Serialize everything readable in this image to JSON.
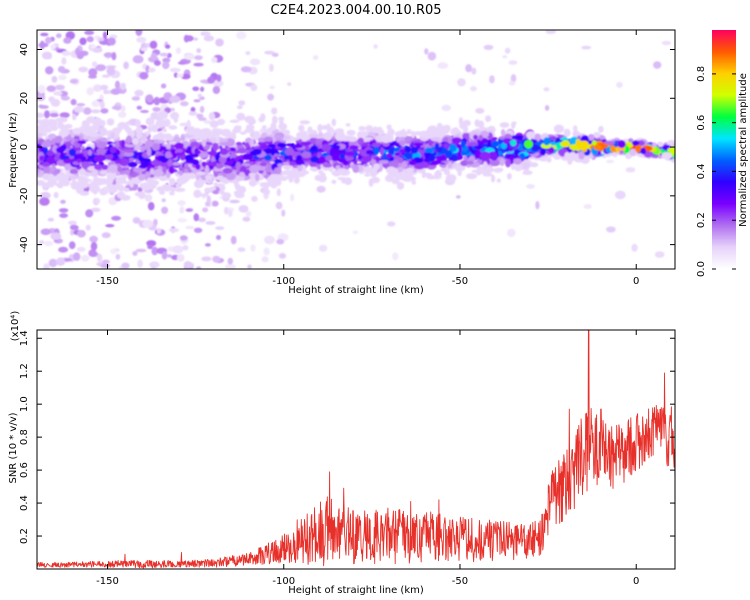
{
  "title": "C2E4.2023.004.00.10.R05",
  "chart_data": [
    {
      "type": "heatmap",
      "xlabel": "Height of straight line (km)",
      "ylabel": "Frequency (Hz)",
      "xlim": [
        -170,
        11
      ],
      "ylim": [
        -50,
        48
      ],
      "xticks": [
        -150,
        -100,
        -50,
        0
      ],
      "yticks": [
        -40,
        -20,
        0,
        20,
        40
      ],
      "colorbar": {
        "label": "Normalized spectral amplitude",
        "range": [
          0,
          0.98
        ],
        "ticks": [
          0.0,
          0.2,
          0.4,
          0.6,
          0.8
        ],
        "colormap": [
          "#ffffff",
          "#e6d2fa",
          "#b070f0",
          "#7a00ff",
          "#3000ff",
          "#0060ff",
          "#00e5ff",
          "#00ff40",
          "#d0ff00",
          "#ffd000",
          "#ff5a00",
          "#ff0060"
        ]
      },
      "band_center_hz": [
        {
          "x": -150,
          "y": -3
        },
        {
          "x": -140,
          "y": -5
        },
        {
          "x": -125,
          "y": -4
        },
        {
          "x": -110,
          "y": -5
        },
        {
          "x": -100,
          "y": -3
        },
        {
          "x": -90,
          "y": -2
        },
        {
          "x": -80,
          "y": -3
        },
        {
          "x": -70,
          "y": -2
        },
        {
          "x": -60,
          "y": -3
        },
        {
          "x": -50,
          "y": -1
        },
        {
          "x": -40,
          "y": -1
        },
        {
          "x": -30,
          "y": 0
        },
        {
          "x": -20,
          "y": 1
        },
        {
          "x": -10,
          "y": 0
        },
        {
          "x": 0,
          "y": 0
        },
        {
          "x": 10,
          "y": -2
        }
      ],
      "band_peak_amplitude": [
        {
          "x": -150,
          "y": 0.35
        },
        {
          "x": -120,
          "y": 0.3
        },
        {
          "x": -100,
          "y": 0.4
        },
        {
          "x": -80,
          "y": 0.45
        },
        {
          "x": -60,
          "y": 0.45
        },
        {
          "x": -40,
          "y": 0.5
        },
        {
          "x": -25,
          "y": 0.7
        },
        {
          "x": -15,
          "y": 0.85
        },
        {
          "x": 0,
          "y": 0.95
        },
        {
          "x": 8,
          "y": 0.7
        }
      ]
    },
    {
      "type": "line",
      "xlabel": "Height of straight line (km)",
      "ylabel": "SNR (10 * v/v)",
      "scale_label": "(x10⁴)",
      "xlim": [
        -170,
        11
      ],
      "ylim": [
        0,
        14500
      ],
      "xticks": [
        -150,
        -100,
        -50,
        0
      ],
      "yticks": [
        2000,
        4000,
        6000,
        8000,
        10000,
        12000,
        14000
      ],
      "ytick_labels": [
        "0.2",
        "0.4",
        "0.6",
        "0.8",
        "1.0",
        "1.2",
        "1.4"
      ],
      "color": "#e8302a",
      "series": [
        {
          "envelope_x": [
            -170,
            -150,
            -140,
            -130,
            -120,
            -110,
            -100,
            -95,
            -90,
            -87,
            -85,
            -80,
            -70,
            -60,
            -50,
            -40,
            -30,
            -27,
            -24,
            -20,
            -18,
            -15,
            -12,
            -8,
            -5,
            0,
            5,
            8,
            9,
            10,
            11
          ],
          "envelope_base": [
            250,
            300,
            300,
            300,
            350,
            600,
            1200,
            1800,
            2200,
            2400,
            2300,
            2000,
            2000,
            2000,
            1800,
            1800,
            1700,
            2000,
            4200,
            5000,
            5500,
            7000,
            7500,
            6800,
            7000,
            7600,
            8400,
            8800,
            7000,
            8500,
            6500
          ],
          "envelope_amp": [
            150,
            200,
            250,
            200,
            250,
            400,
            900,
            1500,
            2100,
            2400,
            1600,
            1700,
            1700,
            1600,
            1400,
            1300,
            1100,
            1200,
            1800,
            2200,
            2200,
            2500,
            2400,
            2100,
            2000,
            1800,
            1500,
            1200,
            1800,
            1500,
            1200
          ],
          "spikes": [
            [
              -145,
              900
            ],
            [
              -129,
              1000
            ],
            [
              -87,
              5900
            ],
            [
              -83,
              4900
            ],
            [
              -64,
              4100
            ],
            [
              -56,
              4200
            ],
            [
              -19,
              9700
            ],
            [
              -13.5,
              14500
            ],
            [
              -10,
              9700
            ],
            [
              8,
              11900
            ]
          ]
        }
      ]
    }
  ]
}
